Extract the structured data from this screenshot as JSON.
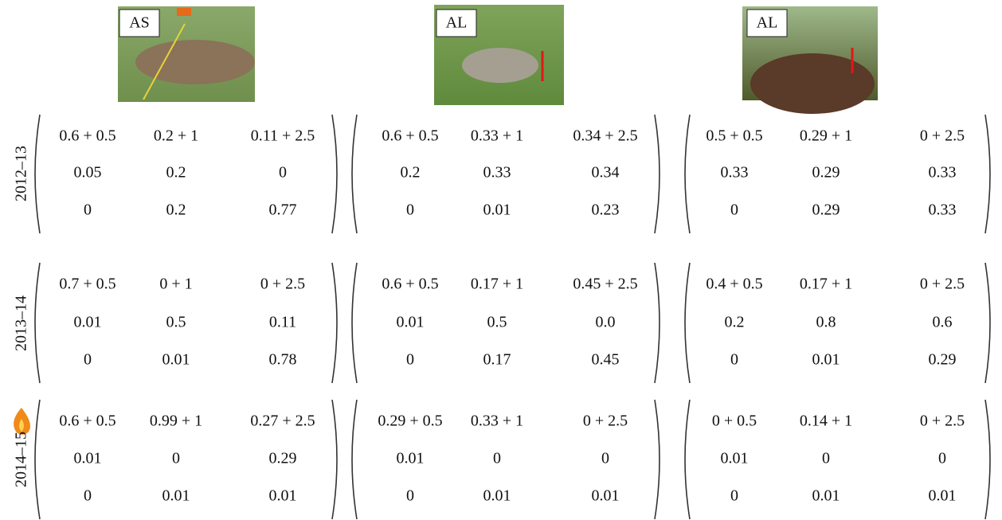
{
  "columns": [
    {
      "label": "AS"
    },
    {
      "label": "AL"
    },
    {
      "label": "AL"
    }
  ],
  "rows": [
    {
      "label": "2012–13",
      "matrices": [
        [
          [
            "0.6 + 0.5",
            "0.2 + 1",
            "0.11 + 2.5"
          ],
          [
            "0.05",
            "0.2",
            "0"
          ],
          [
            "0",
            "0.2",
            "0.77"
          ]
        ],
        [
          [
            "0.6 + 0.5",
            "0.33 + 1",
            "0.34 + 2.5"
          ],
          [
            "0.2",
            "0.33",
            "0.34"
          ],
          [
            "0",
            "0.01",
            "0.23"
          ]
        ],
        [
          [
            "0.5 + 0.5",
            "0.29 + 1",
            "0 + 2.5"
          ],
          [
            "0.33",
            "0.29",
            "0.33"
          ],
          [
            "0",
            "0.29",
            "0.33"
          ]
        ]
      ]
    },
    {
      "label": "2013–14",
      "matrices": [
        [
          [
            "0.7 + 0.5",
            "0 + 1",
            "0 + 2.5"
          ],
          [
            "0.01",
            "0.5",
            "0.11"
          ],
          [
            "0",
            "0.01",
            "0.78"
          ]
        ],
        [
          [
            "0.6 + 0.5",
            "0.17 + 1",
            "0.45 + 2.5"
          ],
          [
            "0.01",
            "0.5",
            "0.0"
          ],
          [
            "0",
            "0.17",
            "0.45"
          ]
        ],
        [
          [
            "0.4 + 0.5",
            "0.17 + 1",
            "0 + 2.5"
          ],
          [
            "0.2",
            "0.8",
            "0.6"
          ],
          [
            "0",
            "0.01",
            "0.29"
          ]
        ]
      ]
    },
    {
      "label": "2014–15",
      "matrices": [
        [
          [
            "0.6 + 0.5",
            "0.99 + 1",
            "0.27 + 2.5"
          ],
          [
            "0.01",
            "0",
            "0.29"
          ],
          [
            "0",
            "0.01",
            "0.01"
          ]
        ],
        [
          [
            "0.29 + 0.5",
            "0.33 + 1",
            "0 + 2.5"
          ],
          [
            "0.01",
            "0",
            "0"
          ],
          [
            "0",
            "0.01",
            "0.01"
          ]
        ],
        [
          [
            "0 + 0.5",
            "0.14 + 1",
            "0 + 2.5"
          ],
          [
            "0.01",
            "0",
            "0"
          ],
          [
            "0",
            "0.01",
            "0.01"
          ]
        ]
      ]
    }
  ]
}
